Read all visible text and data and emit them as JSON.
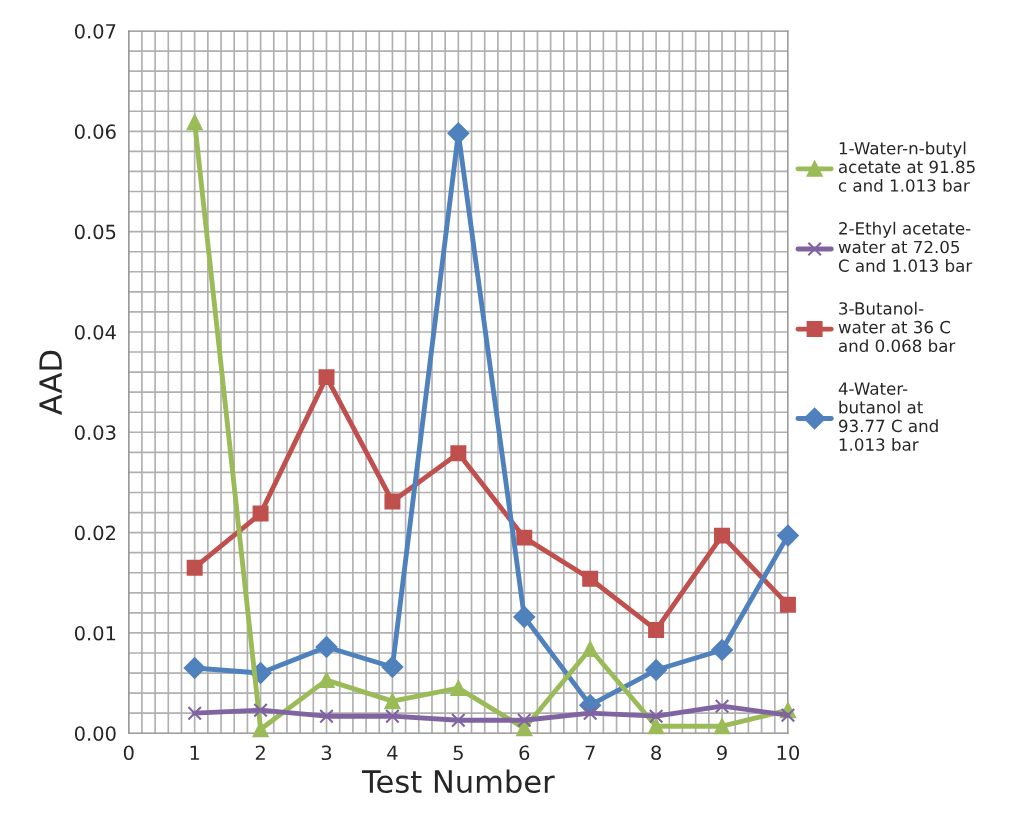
{
  "chart_data": {
    "type": "line",
    "xlabel": "Test Number",
    "ylabel": "AAD",
    "x": [
      1,
      2,
      3,
      4,
      5,
      6,
      7,
      8,
      9,
      10
    ],
    "xlim": [
      0,
      10
    ],
    "xticks": [
      0,
      1,
      2,
      3,
      4,
      5,
      6,
      7,
      8,
      9,
      10
    ],
    "ylim": [
      0,
      0.07
    ],
    "yticks": [
      {
        "value": 0,
        "label": "0.00"
      },
      {
        "value": 0.01,
        "label": "0.01"
      },
      {
        "value": 0.02,
        "label": "0.02"
      },
      {
        "value": 0.03,
        "label": "0.03"
      },
      {
        "value": 0.04,
        "label": "0.04"
      },
      {
        "value": 0.05,
        "label": "0.05"
      },
      {
        "value": 0.06,
        "label": "0.06"
      },
      {
        "value": 0.07,
        "label": "0.07"
      }
    ],
    "grid": true,
    "legend": "right",
    "line_style": "solid",
    "series": [
      {
        "name": "1-Water-n-butyl\nacetate at 91.85\nc and 1.013 bar",
        "color": "#9bbb59",
        "marker": "triangle",
        "values": [
          0.0609,
          0.0004,
          0.0053,
          0.0032,
          0.0045,
          0.0005,
          0.0084,
          0.0007,
          0.0007,
          0.0023
        ]
      },
      {
        "name": "2-Ethyl acetate-\nwater at 72.05\nC and 1.013 bar",
        "color": "#8064a2",
        "marker": "cross",
        "values": [
          0.002,
          0.0023,
          0.0017,
          0.0017,
          0.0013,
          0.0013,
          0.002,
          0.0017,
          0.0027,
          0.0018
        ]
      },
      {
        "name": "3-Butanol-\nwater at 36 C\nand 0.068 bar",
        "color": "#c0504d",
        "marker": "square",
        "values": [
          0.0165,
          0.0219,
          0.0355,
          0.0231,
          0.0279,
          0.0195,
          0.0154,
          0.0103,
          0.0197,
          0.0128
        ]
      },
      {
        "name": "4-Water-\nbutanol at\n93.77 C and\n1.013 bar",
        "color": "#4f81bd",
        "marker": "diamond",
        "values": [
          0.0065,
          0.006,
          0.0086,
          0.0066,
          0.0598,
          0.0116,
          0.0028,
          0.0063,
          0.0083,
          0.0197
        ]
      }
    ]
  }
}
